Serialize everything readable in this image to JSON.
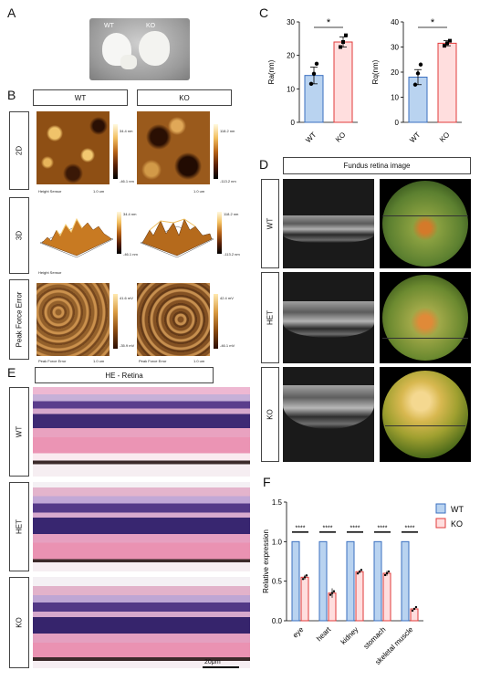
{
  "panels": {
    "a": "A",
    "b": "B",
    "c": "C",
    "d": "D",
    "e": "E",
    "f": "F"
  },
  "panelA": {
    "wt": "WT",
    "ko": "KO"
  },
  "panelB": {
    "col_wt": "WT",
    "col_ko": "KO",
    "row_2d": "2D",
    "row_3d": "3D",
    "row_pfe": "Peak Force Error",
    "wt_2d_max": "34.4 nm",
    "wt_2d_min": "-46.1 nm",
    "ko_2d_max": "118.2 nm",
    "ko_2d_min": "-113.2 nm",
    "wt_3d_max": "34.4 nm",
    "wt_3d_min": "-46.1 nm",
    "ko_3d_max": "118.2 nm",
    "ko_3d_min": "-113.2 nm",
    "wt_pf_max": "41.6 mV",
    "wt_pf_min": "-35.9 mV",
    "ko_pf_max": "42.4 mV",
    "ko_pf_min": "-46.1 mV",
    "height_sensor": "Height Sensor",
    "peak_force_error": "Peak Force Error",
    "scale": "1.0 um"
  },
  "chart_data": [
    {
      "type": "bar",
      "categories": [
        "WT",
        "KO"
      ],
      "values": [
        14,
        24
      ],
      "points": [
        [
          11.5,
          14.5,
          17.5
        ],
        [
          22.5,
          24,
          26
        ]
      ],
      "errors": [
        2.5,
        1.5
      ],
      "ylabel": "Ra(nm)",
      "ylim": [
        0,
        30
      ],
      "yticks": [
        0,
        10,
        20,
        30
      ],
      "significance": "*",
      "colors": [
        "#b9d3f0",
        "#ffdede"
      ],
      "edge": [
        "#3a6fbf",
        "#e23b3b"
      ]
    },
    {
      "type": "bar",
      "categories": [
        "WT",
        "KO"
      ],
      "values": [
        18,
        31.5
      ],
      "points": [
        [
          15,
          19.5,
          23
        ],
        [
          30.5,
          31.5,
          32.5
        ]
      ],
      "errors": [
        3,
        1
      ],
      "ylabel": "Rq(nm)",
      "ylim": [
        0,
        40
      ],
      "yticks": [
        0,
        10,
        20,
        30,
        40
      ],
      "significance": "*",
      "colors": [
        "#b9d3f0",
        "#ffdede"
      ],
      "edge": [
        "#3a6fbf",
        "#e23b3b"
      ]
    },
    {
      "type": "bar",
      "categories": [
        "eye",
        "heart",
        "kidney",
        "stomach",
        "skeletal muscle"
      ],
      "series": [
        {
          "name": "WT",
          "values": [
            1,
            1,
            1,
            1,
            1
          ],
          "color": "#b9d3f0",
          "edge": "#3a6fbf"
        },
        {
          "name": "KO",
          "values": [
            0.55,
            0.35,
            0.62,
            0.6,
            0.15
          ],
          "color": "#ffdede",
          "edge": "#e23b3b"
        }
      ],
      "errors_ko": [
        0.03,
        0.06,
        0.02,
        0.03,
        0.01
      ],
      "ylabel": "Relative expression",
      "ylim": [
        0,
        1.5
      ],
      "yticks": [
        "0.0",
        "0.5",
        "1.0",
        "1.5"
      ],
      "significance": [
        "****",
        "****",
        "****",
        "****",
        "****"
      ],
      "legend": "top-right"
    }
  ],
  "panelD": {
    "title": "Fundus retina image",
    "rows": [
      "WT",
      "HET",
      "KO"
    ]
  },
  "panelE": {
    "title": "HE - Retina",
    "rows": [
      "WT",
      "HET",
      "KO"
    ],
    "scalebar": "20μm"
  },
  "colors": {
    "bar_wt": "#b9d3f0",
    "bar_ko": "#ffdede",
    "edge_wt": "#3a6fbf",
    "edge_ko": "#e23b3b",
    "afm": "#8a4a12"
  }
}
